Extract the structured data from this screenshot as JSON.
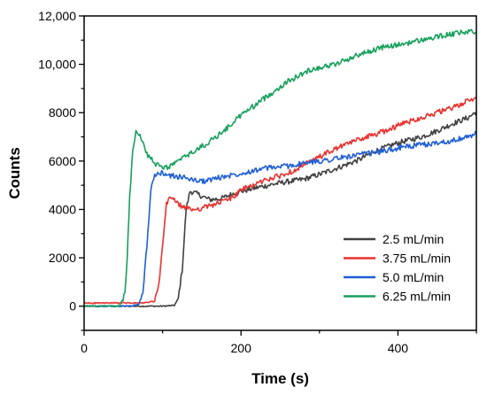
{
  "chart_data": {
    "type": "line",
    "title": "",
    "xlabel": "Time (s)",
    "ylabel": "Counts",
    "xlim": [
      0,
      500
    ],
    "ylim": [
      -1000,
      12000
    ],
    "x_ticks": [
      0,
      200,
      400
    ],
    "x_tick_labels": [
      "0",
      "200",
      "400"
    ],
    "y_ticks": [
      0,
      2000,
      4000,
      6000,
      8000,
      10000,
      12000
    ],
    "y_tick_labels": [
      "0",
      "2000",
      "4000",
      "6000",
      "8000",
      "10,000",
      "12,000"
    ],
    "grid": false,
    "legend_position": "bottom-right",
    "series": [
      {
        "name": "2.5 mL/min",
        "color": "#404040",
        "x": [
          0,
          100,
          115,
          120,
          125,
          130,
          135,
          140,
          150,
          160,
          175,
          190,
          200,
          220,
          250,
          280,
          300,
          330,
          350,
          370,
          400,
          430,
          450,
          470,
          490,
          500
        ],
        "y": [
          0,
          0,
          30,
          300,
          1500,
          4000,
          4750,
          4700,
          4550,
          4400,
          4450,
          4650,
          4750,
          4900,
          5100,
          5250,
          5450,
          5800,
          6050,
          6400,
          6750,
          7000,
          7250,
          7550,
          7800,
          8050
        ]
      },
      {
        "name": "3.75 mL/min",
        "color": "#e8322f",
        "x": [
          0,
          75,
          90,
          95,
          100,
          105,
          110,
          115,
          120,
          130,
          140,
          150,
          170,
          190,
          200,
          230,
          260,
          290,
          320,
          350,
          380,
          410,
          440,
          470,
          490,
          500
        ],
        "y": [
          130,
          130,
          200,
          800,
          2500,
          4200,
          4550,
          4400,
          4200,
          4050,
          4000,
          4050,
          4250,
          4500,
          4800,
          5200,
          5500,
          6000,
          6500,
          6900,
          7200,
          7600,
          7900,
          8200,
          8500,
          8600
        ]
      },
      {
        "name": "5.0 mL/min",
        "color": "#1f5fd6",
        "x": [
          0,
          60,
          70,
          75,
          80,
          85,
          90,
          95,
          100,
          110,
          130,
          150,
          170,
          200,
          230,
          260,
          290,
          320,
          350,
          380,
          410,
          440,
          470,
          490,
          500
        ],
        "y": [
          0,
          0,
          100,
          600,
          2500,
          4800,
          5350,
          5500,
          5500,
          5400,
          5300,
          5150,
          5300,
          5500,
          5700,
          5800,
          5950,
          6100,
          6250,
          6400,
          6600,
          6700,
          6850,
          7000,
          7150
        ]
      },
      {
        "name": "6.25 mL/min",
        "color": "#17a05c",
        "x": [
          0,
          45,
          52,
          55,
          58,
          62,
          66,
          70,
          75,
          80,
          90,
          100,
          110,
          120,
          140,
          160,
          180,
          200,
          230,
          260,
          290,
          320,
          350,
          380,
          400,
          430,
          460,
          490,
          500
        ],
        "y": [
          0,
          0,
          500,
          2000,
          4500,
          6500,
          7250,
          7150,
          6700,
          6300,
          5900,
          5700,
          5800,
          6000,
          6400,
          6800,
          7300,
          7900,
          8600,
          9300,
          9800,
          10000,
          10400,
          10700,
          10800,
          11000,
          11200,
          11350,
          11300
        ]
      }
    ]
  }
}
